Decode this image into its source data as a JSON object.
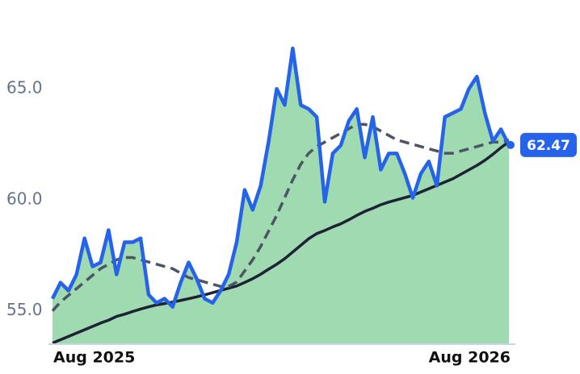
{
  "chart_data": {
    "type": "line",
    "categories": [
      "Aug 2025",
      null,
      null,
      null,
      null,
      null,
      null,
      null,
      null,
      null,
      null,
      null,
      null,
      null,
      null,
      null,
      null,
      null,
      null,
      null,
      null,
      null,
      null,
      null,
      null,
      null,
      null,
      null,
      null,
      null,
      null,
      null,
      null,
      null,
      null,
      null,
      null,
      null,
      null,
      null,
      null,
      null,
      null,
      null,
      null,
      null,
      null,
      null,
      null,
      null,
      null,
      null,
      null,
      null,
      null,
      null,
      null,
      "Aug 2026"
    ],
    "series": [
      {
        "color": "#2563eb",
        "values": [
          55.55,
          56.27,
          55.91,
          56.64,
          58.27,
          57.0,
          57.18,
          58.64,
          56.64,
          58.09,
          58.09,
          58.27,
          55.73,
          55.36,
          55.55,
          55.18,
          56.27,
          57.18,
          56.45,
          55.55,
          55.36,
          55.91,
          56.64,
          58.09,
          60.45,
          59.55,
          60.64,
          62.64,
          65.0,
          64.27,
          66.82,
          64.27,
          64.09,
          63.73,
          59.91,
          62.09,
          62.45,
          63.55,
          64.09,
          61.91,
          63.73,
          61.36,
          62.09,
          62.09,
          61.18,
          60.09,
          61.18,
          61.73,
          60.64,
          63.73,
          63.91,
          64.09,
          65.0,
          65.55,
          63.91,
          62.64,
          63.18,
          62.47
        ]
      },
      {
        "color": "#1e2235",
        "values": [
          53.55,
          53.7,
          53.85,
          54.0,
          54.15,
          54.3,
          54.45,
          54.58,
          54.75,
          54.85,
          54.97,
          55.08,
          55.18,
          55.27,
          55.33,
          55.4,
          55.47,
          55.55,
          55.63,
          55.72,
          55.82,
          55.92,
          56.02,
          56.12,
          56.28,
          56.45,
          56.65,
          56.88,
          57.1,
          57.35,
          57.65,
          57.95,
          58.25,
          58.48,
          58.62,
          58.78,
          58.92,
          59.1,
          59.3,
          59.48,
          59.62,
          59.78,
          59.9,
          60.0,
          60.1,
          60.2,
          60.35,
          60.5,
          60.65,
          60.8,
          60.95,
          61.15,
          61.35,
          61.55,
          61.78,
          62.05,
          62.35,
          62.62
        ]
      },
      {
        "color": "#4b5563",
        "dashed": true,
        "values": [
          55.0,
          55.4,
          55.7,
          56.0,
          56.3,
          56.6,
          56.9,
          57.1,
          57.3,
          57.4,
          57.4,
          57.3,
          57.2,
          57.1,
          57.0,
          56.9,
          56.7,
          56.5,
          56.4,
          56.3,
          56.2,
          56.1,
          56.1,
          56.3,
          56.8,
          57.3,
          57.9,
          58.6,
          59.3,
          60.1,
          60.9,
          61.6,
          62.1,
          62.4,
          62.6,
          62.8,
          63.0,
          63.2,
          63.4,
          63.4,
          63.3,
          63.1,
          62.9,
          62.7,
          62.6,
          62.5,
          62.4,
          62.3,
          62.2,
          62.1,
          62.1,
          62.2,
          62.3,
          62.4,
          62.5,
          62.6,
          62.6,
          62.7
        ]
      }
    ],
    "area_color": "#8fd3a3",
    "ylim": [
      53.5,
      69
    ],
    "yticks": [
      {
        "value": 55,
        "label": "55.0"
      },
      {
        "value": 60,
        "label": "60.0"
      },
      {
        "value": 65,
        "label": "65.0"
      }
    ],
    "grid": false
  }
}
